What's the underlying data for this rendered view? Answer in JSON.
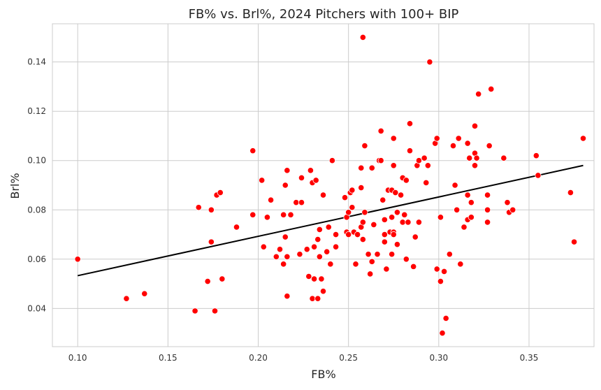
{
  "chart_data": {
    "type": "scatter",
    "title": "FB% vs. Brl%, 2024 Pitchers with 100+ BIP",
    "xlabel": "FB%",
    "ylabel": "Brl%",
    "xlim": [
      0.086,
      0.386
    ],
    "ylim": [
      0.0245,
      0.1555
    ],
    "x_ticks": [
      0.1,
      0.15,
      0.2,
      0.25,
      0.3,
      0.35
    ],
    "x_tick_labels": [
      "0.10",
      "0.15",
      "0.20",
      "0.25",
      "0.30",
      "0.35"
    ],
    "y_ticks": [
      0.04,
      0.06,
      0.08,
      0.1,
      0.12,
      0.14
    ],
    "y_tick_labels": [
      "0.04",
      "0.06",
      "0.08",
      "0.10",
      "0.12",
      "0.14"
    ],
    "grid": true,
    "point_color": "#ff0000",
    "trendline_color": "#000000",
    "trendline": {
      "x": [
        0.1,
        0.38
      ],
      "y": [
        0.0533,
        0.098
      ]
    },
    "points": [
      [
        0.1,
        0.06
      ],
      [
        0.127,
        0.044
      ],
      [
        0.137,
        0.046
      ],
      [
        0.165,
        0.039
      ],
      [
        0.167,
        0.081
      ],
      [
        0.172,
        0.051
      ],
      [
        0.174,
        0.067
      ],
      [
        0.174,
        0.08
      ],
      [
        0.176,
        0.039
      ],
      [
        0.177,
        0.086
      ],
      [
        0.179,
        0.087
      ],
      [
        0.18,
        0.052
      ],
      [
        0.188,
        0.073
      ],
      [
        0.197,
        0.104
      ],
      [
        0.197,
        0.078
      ],
      [
        0.202,
        0.092
      ],
      [
        0.203,
        0.065
      ],
      [
        0.205,
        0.077
      ],
      [
        0.207,
        0.084
      ],
      [
        0.21,
        0.061
      ],
      [
        0.212,
        0.064
      ],
      [
        0.214,
        0.058
      ],
      [
        0.214,
        0.078
      ],
      [
        0.215,
        0.069
      ],
      [
        0.215,
        0.09
      ],
      [
        0.216,
        0.096
      ],
      [
        0.216,
        0.045
      ],
      [
        0.216,
        0.061
      ],
      [
        0.218,
        0.078
      ],
      [
        0.221,
        0.083
      ],
      [
        0.223,
        0.062
      ],
      [
        0.224,
        0.083
      ],
      [
        0.224,
        0.093
      ],
      [
        0.227,
        0.064
      ],
      [
        0.228,
        0.053
      ],
      [
        0.229,
        0.096
      ],
      [
        0.23,
        0.044
      ],
      [
        0.23,
        0.091
      ],
      [
        0.231,
        0.052
      ],
      [
        0.231,
        0.065
      ],
      [
        0.232,
        0.092
      ],
      [
        0.233,
        0.044
      ],
      [
        0.233,
        0.068
      ],
      [
        0.234,
        0.061
      ],
      [
        0.234,
        0.072
      ],
      [
        0.235,
        0.052
      ],
      [
        0.236,
        0.047
      ],
      [
        0.236,
        0.086
      ],
      [
        0.238,
        0.063
      ],
      [
        0.239,
        0.073
      ],
      [
        0.24,
        0.058
      ],
      [
        0.241,
        0.1
      ],
      [
        0.243,
        0.065
      ],
      [
        0.243,
        0.07
      ],
      [
        0.248,
        0.085
      ],
      [
        0.249,
        0.077
      ],
      [
        0.249,
        0.071
      ],
      [
        0.25,
        0.07
      ],
      [
        0.25,
        0.079
      ],
      [
        0.251,
        0.087
      ],
      [
        0.252,
        0.088
      ],
      [
        0.252,
        0.081
      ],
      [
        0.253,
        0.071
      ],
      [
        0.254,
        0.058
      ],
      [
        0.255,
        0.07
      ],
      [
        0.257,
        0.089
      ],
      [
        0.257,
        0.073
      ],
      [
        0.257,
        0.097
      ],
      [
        0.258,
        0.15
      ],
      [
        0.258,
        0.068
      ],
      [
        0.258,
        0.075
      ],
      [
        0.259,
        0.106
      ],
      [
        0.259,
        0.079
      ],
      [
        0.261,
        0.062
      ],
      [
        0.262,
        0.054
      ],
      [
        0.263,
        0.097
      ],
      [
        0.263,
        0.059
      ],
      [
        0.264,
        0.074
      ],
      [
        0.266,
        0.062
      ],
      [
        0.267,
        0.1
      ],
      [
        0.268,
        0.1
      ],
      [
        0.268,
        0.112
      ],
      [
        0.269,
        0.084
      ],
      [
        0.27,
        0.076
      ],
      [
        0.27,
        0.07
      ],
      [
        0.27,
        0.067
      ],
      [
        0.271,
        0.056
      ],
      [
        0.272,
        0.088
      ],
      [
        0.273,
        0.071
      ],
      [
        0.274,
        0.062
      ],
      [
        0.274,
        0.088
      ],
      [
        0.274,
        0.077
      ],
      [
        0.275,
        0.071
      ],
      [
        0.275,
        0.07
      ],
      [
        0.275,
        0.098
      ],
      [
        0.275,
        0.109
      ],
      [
        0.276,
        0.087
      ],
      [
        0.277,
        0.066
      ],
      [
        0.277,
        0.079
      ],
      [
        0.279,
        0.086
      ],
      [
        0.28,
        0.093
      ],
      [
        0.28,
        0.075
      ],
      [
        0.281,
        0.078
      ],
      [
        0.282,
        0.06
      ],
      [
        0.282,
        0.092
      ],
      [
        0.283,
        0.075
      ],
      [
        0.284,
        0.115
      ],
      [
        0.284,
        0.104
      ],
      [
        0.286,
        0.057
      ],
      [
        0.287,
        0.069
      ],
      [
        0.288,
        0.098
      ],
      [
        0.289,
        0.1
      ],
      [
        0.289,
        0.075
      ],
      [
        0.292,
        0.101
      ],
      [
        0.293,
        0.091
      ],
      [
        0.294,
        0.098
      ],
      [
        0.295,
        0.14
      ],
      [
        0.298,
        0.107
      ],
      [
        0.299,
        0.109
      ],
      [
        0.299,
        0.056
      ],
      [
        0.301,
        0.051
      ],
      [
        0.301,
        0.077
      ],
      [
        0.302,
        0.03
      ],
      [
        0.303,
        0.055
      ],
      [
        0.304,
        0.036
      ],
      [
        0.306,
        0.062
      ],
      [
        0.308,
        0.106
      ],
      [
        0.309,
        0.09
      ],
      [
        0.31,
        0.08
      ],
      [
        0.311,
        0.109
      ],
      [
        0.312,
        0.058
      ],
      [
        0.314,
        0.073
      ],
      [
        0.316,
        0.107
      ],
      [
        0.316,
        0.076
      ],
      [
        0.316,
        0.086
      ],
      [
        0.317,
        0.101
      ],
      [
        0.318,
        0.077
      ],
      [
        0.318,
        0.083
      ],
      [
        0.32,
        0.114
      ],
      [
        0.32,
        0.103
      ],
      [
        0.32,
        0.098
      ],
      [
        0.321,
        0.101
      ],
      [
        0.322,
        0.127
      ],
      [
        0.327,
        0.086
      ],
      [
        0.327,
        0.08
      ],
      [
        0.327,
        0.075
      ],
      [
        0.328,
        0.106
      ],
      [
        0.329,
        0.129
      ],
      [
        0.336,
        0.101
      ],
      [
        0.338,
        0.083
      ],
      [
        0.339,
        0.079
      ],
      [
        0.341,
        0.08
      ],
      [
        0.354,
        0.102
      ],
      [
        0.355,
        0.094
      ],
      [
        0.373,
        0.087
      ],
      [
        0.375,
        0.067
      ],
      [
        0.38,
        0.109
      ]
    ]
  }
}
